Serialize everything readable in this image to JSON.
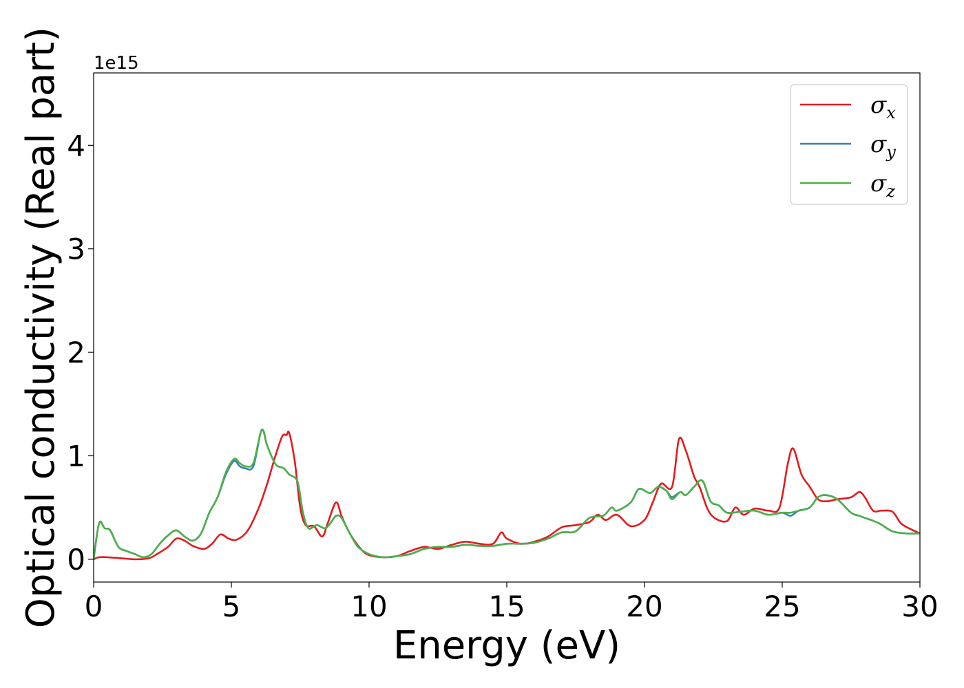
{
  "chart_data": {
    "type": "line",
    "title": "",
    "xlabel": "Energy (eV)",
    "ylabel": "Optical conductivity (Real part)",
    "y_offset_text": "1e15",
    "xlim": [
      0,
      30
    ],
    "ylim": [
      -0.22,
      4.7
    ],
    "x_ticks": [
      0,
      5,
      10,
      15,
      20,
      25,
      30
    ],
    "y_ticks": [
      0,
      1,
      2,
      3,
      4
    ],
    "grid": false,
    "legend_position": "top-right",
    "series": [
      {
        "name": "σx",
        "label_base": "σ",
        "label_sub": "x",
        "color": "#e41a1c",
        "x": [
          0,
          0.2,
          0.5,
          1.0,
          1.5,
          2.0,
          2.3,
          2.7,
          3.0,
          3.3,
          3.6,
          4.0,
          4.3,
          4.6,
          4.9,
          5.2,
          5.6,
          6.0,
          6.3,
          6.6,
          6.85,
          7.0,
          7.1,
          7.3,
          7.5,
          7.7,
          8.0,
          8.3,
          8.5,
          8.8,
          9.0,
          9.3,
          9.7,
          10.0,
          10.5,
          11.0,
          11.5,
          12.0,
          12.5,
          13.0,
          13.5,
          14.0,
          14.5,
          14.8,
          15.0,
          15.5,
          16.0,
          16.5,
          17.0,
          17.5,
          18.0,
          18.3,
          18.6,
          19.0,
          19.5,
          20.0,
          20.3,
          20.6,
          21.0,
          21.25,
          21.5,
          21.8,
          22.0,
          22.3,
          22.6,
          23.0,
          23.3,
          23.6,
          24.0,
          24.5,
          24.9,
          25.2,
          25.4,
          25.7,
          26.0,
          26.3,
          26.6,
          27.0,
          27.5,
          27.8,
          28.0,
          28.3,
          28.6,
          29.0,
          29.3,
          29.6,
          30.0
        ],
        "values": [
          0.0,
          0.02,
          0.02,
          0.01,
          0.0,
          0.01,
          0.05,
          0.12,
          0.2,
          0.18,
          0.13,
          0.1,
          0.15,
          0.24,
          0.2,
          0.19,
          0.28,
          0.5,
          0.73,
          1.0,
          1.19,
          1.2,
          1.22,
          0.95,
          0.5,
          0.33,
          0.32,
          0.22,
          0.35,
          0.55,
          0.42,
          0.25,
          0.1,
          0.04,
          0.02,
          0.03,
          0.08,
          0.12,
          0.1,
          0.14,
          0.17,
          0.15,
          0.15,
          0.26,
          0.2,
          0.15,
          0.17,
          0.22,
          0.31,
          0.33,
          0.36,
          0.43,
          0.38,
          0.43,
          0.32,
          0.38,
          0.55,
          0.73,
          0.7,
          1.16,
          1.05,
          0.8,
          0.7,
          0.48,
          0.39,
          0.37,
          0.5,
          0.43,
          0.49,
          0.47,
          0.5,
          0.92,
          1.07,
          0.82,
          0.7,
          0.58,
          0.56,
          0.58,
          0.6,
          0.65,
          0.6,
          0.47,
          0.47,
          0.46,
          0.35,
          0.3,
          0.25
        ]
      },
      {
        "name": "σy",
        "label_base": "σ",
        "label_sub": "y",
        "color": "#377eb8",
        "x": [
          0,
          0.2,
          0.4,
          0.6,
          0.9,
          1.2,
          1.5,
          1.8,
          2.1,
          2.4,
          2.7,
          3.0,
          3.3,
          3.6,
          3.9,
          4.2,
          4.5,
          4.8,
          5.1,
          5.3,
          5.5,
          5.8,
          6.1,
          6.3,
          6.6,
          6.9,
          7.1,
          7.4,
          7.6,
          7.8,
          8.1,
          8.4,
          8.6,
          8.8,
          9.0,
          9.3,
          9.6,
          10.0,
          10.5,
          11.0,
          11.5,
          12.0,
          12.5,
          13.0,
          13.5,
          14.0,
          14.5,
          15.0,
          15.5,
          16.0,
          16.5,
          17.0,
          17.5,
          18.0,
          18.5,
          18.8,
          19.0,
          19.5,
          19.8,
          20.2,
          20.5,
          20.8,
          21.0,
          21.3,
          21.5,
          21.8,
          22.1,
          22.4,
          22.7,
          23.0,
          23.5,
          24.0,
          24.5,
          25.0,
          25.3,
          25.6,
          26.0,
          26.3,
          26.6,
          27.0,
          27.5,
          27.8,
          28.0,
          28.5,
          29.0,
          29.5,
          30.0
        ],
        "values": [
          0.0,
          0.35,
          0.3,
          0.28,
          0.12,
          0.08,
          0.05,
          0.02,
          0.05,
          0.15,
          0.23,
          0.28,
          0.22,
          0.18,
          0.25,
          0.45,
          0.6,
          0.82,
          0.95,
          0.9,
          0.88,
          0.9,
          1.25,
          1.1,
          0.92,
          0.88,
          0.82,
          0.75,
          0.45,
          0.3,
          0.33,
          0.3,
          0.35,
          0.42,
          0.4,
          0.25,
          0.12,
          0.05,
          0.02,
          0.03,
          0.05,
          0.1,
          0.12,
          0.12,
          0.14,
          0.13,
          0.13,
          0.15,
          0.15,
          0.16,
          0.2,
          0.26,
          0.27,
          0.4,
          0.42,
          0.5,
          0.47,
          0.55,
          0.68,
          0.64,
          0.7,
          0.66,
          0.6,
          0.65,
          0.62,
          0.7,
          0.76,
          0.56,
          0.52,
          0.45,
          0.46,
          0.47,
          0.43,
          0.45,
          0.42,
          0.47,
          0.5,
          0.6,
          0.62,
          0.58,
          0.45,
          0.42,
          0.4,
          0.35,
          0.27,
          0.25,
          0.25
        ]
      },
      {
        "name": "σz",
        "label_base": "σ",
        "label_sub": "z",
        "color": "#4daf4a",
        "x": [
          0,
          0.2,
          0.4,
          0.6,
          0.9,
          1.2,
          1.5,
          1.8,
          2.1,
          2.4,
          2.7,
          3.0,
          3.3,
          3.6,
          3.9,
          4.2,
          4.5,
          4.8,
          5.1,
          5.3,
          5.5,
          5.8,
          6.1,
          6.3,
          6.6,
          6.9,
          7.1,
          7.4,
          7.6,
          7.8,
          8.1,
          8.4,
          8.6,
          8.8,
          9.0,
          9.3,
          9.6,
          10.0,
          10.5,
          11.0,
          11.5,
          12.0,
          12.5,
          13.0,
          13.5,
          14.0,
          14.5,
          15.0,
          15.5,
          16.0,
          16.5,
          17.0,
          17.5,
          18.0,
          18.5,
          18.8,
          19.0,
          19.5,
          19.8,
          20.2,
          20.5,
          20.8,
          21.0,
          21.3,
          21.5,
          21.8,
          22.1,
          22.4,
          22.7,
          23.0,
          23.5,
          24.0,
          24.5,
          25.0,
          25.3,
          25.6,
          26.0,
          26.3,
          26.6,
          27.0,
          27.5,
          27.8,
          28.0,
          28.5,
          29.0,
          29.5,
          30.0
        ],
        "values": [
          0.0,
          0.35,
          0.3,
          0.28,
          0.12,
          0.08,
          0.05,
          0.02,
          0.05,
          0.15,
          0.23,
          0.28,
          0.22,
          0.18,
          0.25,
          0.45,
          0.6,
          0.84,
          0.97,
          0.93,
          0.9,
          0.93,
          1.25,
          1.1,
          0.92,
          0.88,
          0.82,
          0.75,
          0.45,
          0.3,
          0.33,
          0.3,
          0.35,
          0.42,
          0.4,
          0.25,
          0.12,
          0.05,
          0.02,
          0.03,
          0.05,
          0.1,
          0.12,
          0.12,
          0.14,
          0.13,
          0.13,
          0.15,
          0.15,
          0.16,
          0.2,
          0.26,
          0.27,
          0.4,
          0.42,
          0.5,
          0.47,
          0.55,
          0.68,
          0.64,
          0.7,
          0.66,
          0.58,
          0.65,
          0.62,
          0.7,
          0.76,
          0.56,
          0.52,
          0.45,
          0.46,
          0.47,
          0.43,
          0.45,
          0.45,
          0.47,
          0.5,
          0.6,
          0.62,
          0.58,
          0.45,
          0.42,
          0.4,
          0.35,
          0.27,
          0.25,
          0.25
        ]
      }
    ]
  }
}
